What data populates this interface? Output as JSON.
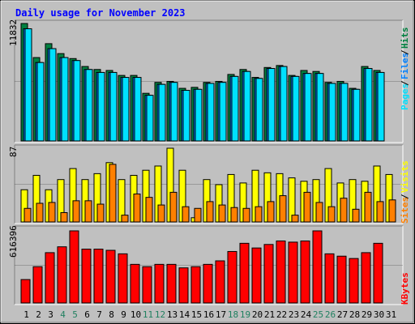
{
  "title": "Daily usage for November 2023",
  "colors": {
    "background": "#c0c0c0",
    "hits": "#008040",
    "files": "#0080ff",
    "pages": "#00e0ff",
    "visits": "#ffff00",
    "sites": "#ff8000",
    "kbytes": "#ff0000",
    "title": "#0000ff",
    "weekend_label": "#208060"
  },
  "chart_data": [
    {
      "type": "bar",
      "panel": "top",
      "ymax_label": "11832",
      "ylim": [
        0,
        11832
      ],
      "legend": [
        "Pages",
        "Files",
        "Hits"
      ],
      "categories": [
        "1",
        "2",
        "3",
        "4",
        "5",
        "6",
        "7",
        "8",
        "9",
        "10",
        "11",
        "12",
        "13",
        "14",
        "15",
        "16",
        "17",
        "18",
        "19",
        "20",
        "21",
        "22",
        "23",
        "24",
        "25",
        "26",
        "27",
        "28",
        "29",
        "30",
        "31"
      ],
      "series": [
        {
          "name": "Hits",
          "values": [
            11832,
            8400,
            9800,
            8800,
            8300,
            7500,
            7200,
            7100,
            6600,
            6600,
            4800,
            5900,
            6000,
            5300,
            5400,
            5900,
            6000,
            6700,
            7200,
            6400,
            7400,
            7600,
            6600,
            7100,
            7000,
            5900,
            6000,
            5300,
            7500,
            7100,
            0
          ]
        },
        {
          "name": "Files",
          "values": [
            11300,
            7900,
            9300,
            8400,
            8100,
            7200,
            6900,
            6900,
            6400,
            6400,
            4600,
            5700,
            5900,
            5100,
            5200,
            5800,
            5900,
            6500,
            7000,
            6300,
            7300,
            7500,
            6500,
            6800,
            6800,
            5800,
            5800,
            5200,
            7300,
            6900,
            0
          ]
        },
        {
          "name": "Pages",
          "values": [
            11300,
            7900,
            9300,
            8400,
            8100,
            7200,
            6900,
            6900,
            6400,
            6400,
            4600,
            5700,
            5900,
            5100,
            5200,
            5800,
            5900,
            6500,
            7000,
            6300,
            7300,
            7500,
            6500,
            6800,
            6800,
            5800,
            5800,
            5200,
            7300,
            6900,
            0
          ]
        }
      ]
    },
    {
      "type": "bar",
      "panel": "middle",
      "ymax_label": "87",
      "ylim": [
        0,
        87
      ],
      "legend": [
        "Sites",
        "Visits"
      ],
      "categories": [
        "1",
        "2",
        "3",
        "4",
        "5",
        "6",
        "7",
        "8",
        "9",
        "10",
        "11",
        "12",
        "13",
        "14",
        "15",
        "16",
        "17",
        "18",
        "19",
        "20",
        "21",
        "22",
        "23",
        "24",
        "25",
        "26",
        "27",
        "28",
        "29",
        "30",
        "31"
      ],
      "series": [
        {
          "name": "Visits",
          "values": [
            38,
            55,
            38,
            50,
            63,
            50,
            57,
            70,
            50,
            55,
            61,
            66,
            87,
            61,
            5,
            50,
            44,
            56,
            46,
            61,
            58,
            57,
            52,
            48,
            50,
            63,
            46,
            50,
            48,
            66,
            56
          ]
        },
        {
          "name": "Sites",
          "values": [
            16,
            22,
            23,
            11,
            25,
            25,
            21,
            68,
            8,
            33,
            29,
            20,
            35,
            18,
            16,
            24,
            20,
            17,
            16,
            18,
            24,
            31,
            8,
            35,
            23,
            18,
            28,
            15,
            35,
            24,
            26
          ]
        }
      ]
    },
    {
      "type": "bar",
      "panel": "bottom",
      "ymax_label": "616396",
      "ylim": [
        0,
        616396
      ],
      "legend": [
        "KBytes"
      ],
      "categories": [
        "1",
        "2",
        "3",
        "4",
        "5",
        "6",
        "7",
        "8",
        "9",
        "10",
        "11",
        "12",
        "13",
        "14",
        "15",
        "16",
        "17",
        "18",
        "19",
        "20",
        "21",
        "22",
        "23",
        "24",
        "25",
        "26",
        "27",
        "28",
        "29",
        "30",
        "31"
      ],
      "series": [
        {
          "name": "KBytes",
          "values": [
            200000,
            310000,
            430000,
            480000,
            616396,
            460000,
            460000,
            450000,
            420000,
            330000,
            310000,
            330000,
            330000,
            300000,
            310000,
            330000,
            360000,
            440000,
            510000,
            470000,
            500000,
            530000,
            520000,
            530000,
            616396,
            420000,
            400000,
            380000,
            430000,
            510000,
            0
          ]
        }
      ]
    }
  ],
  "x_labels": [
    "1",
    "2",
    "3",
    "4",
    "5",
    "6",
    "7",
    "8",
    "9",
    "10",
    "11",
    "12",
    "13",
    "14",
    "15",
    "16",
    "17",
    "18",
    "19",
    "20",
    "21",
    "22",
    "23",
    "24",
    "25",
    "26",
    "27",
    "28",
    "29",
    "30",
    "31"
  ],
  "weekend_days": [
    "4",
    "5",
    "11",
    "12",
    "18",
    "19",
    "25",
    "26"
  ]
}
